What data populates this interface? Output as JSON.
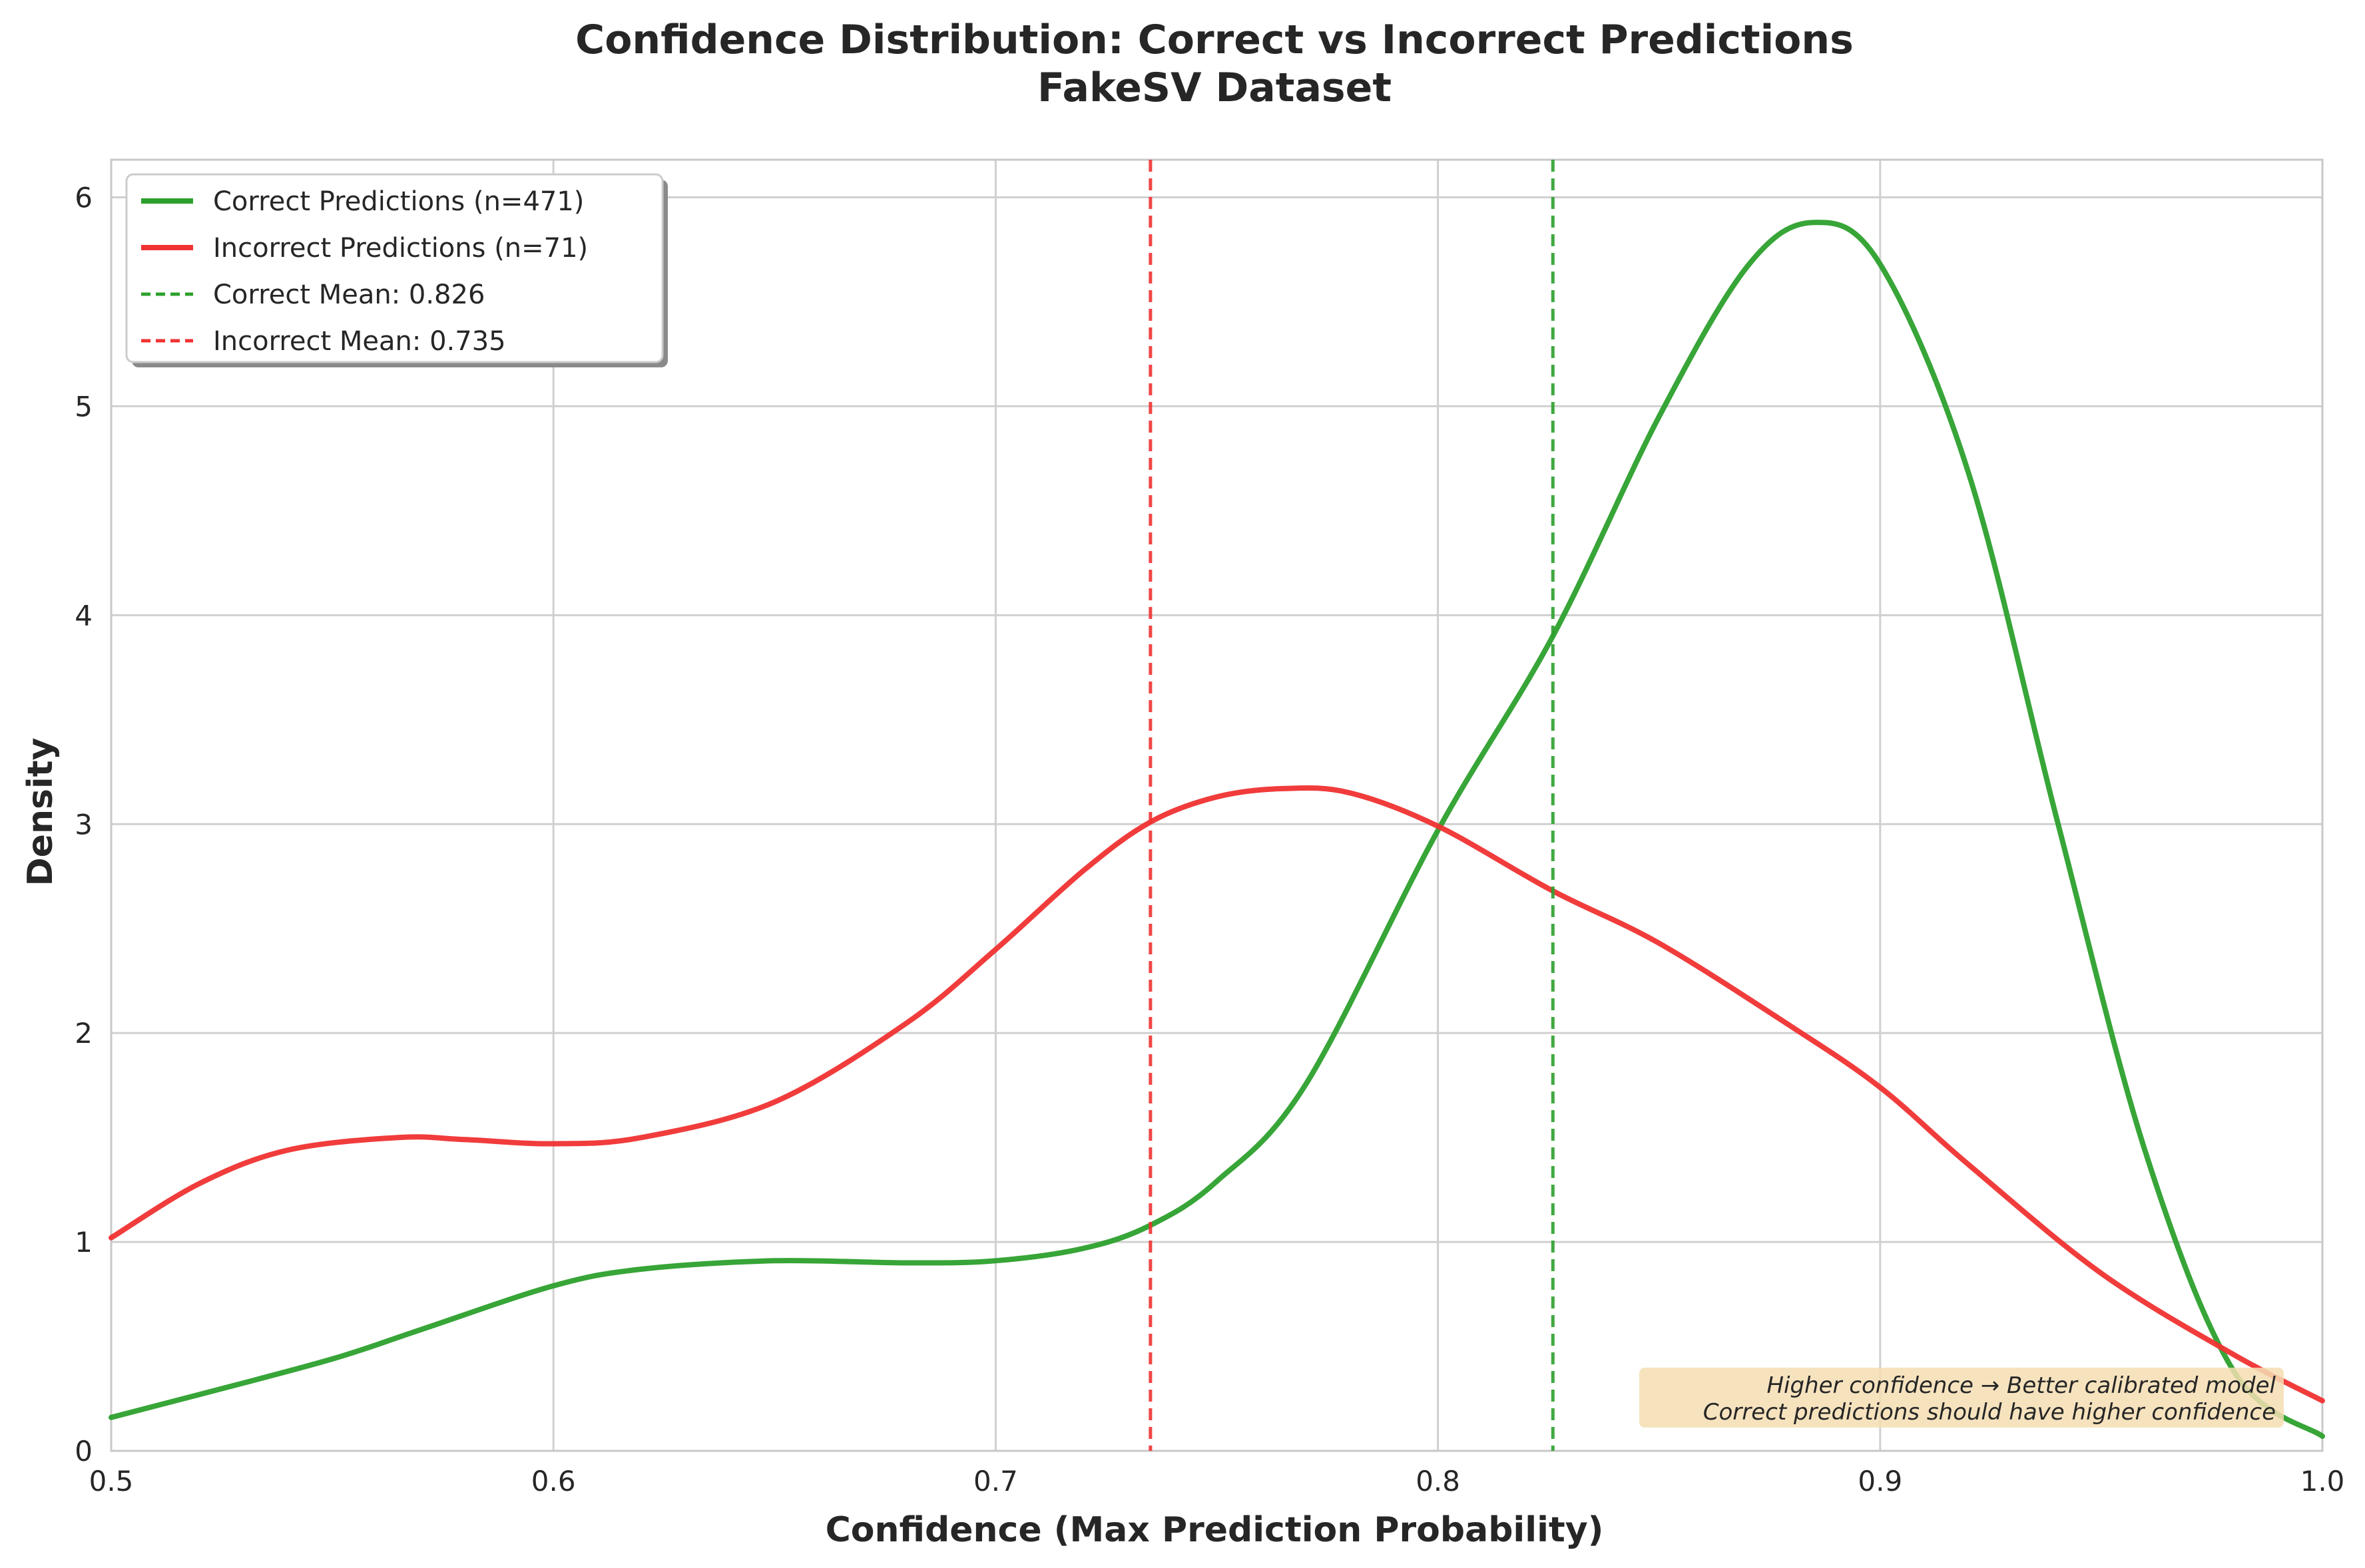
{
  "chart_data": {
    "type": "line",
    "title": "Confidence Distribution: Correct vs Incorrect Predictions",
    "subtitle": "FakeSV Dataset",
    "xlabel": "Confidence (Max Prediction Probability)",
    "ylabel": "Density",
    "xlim": [
      0.5,
      1.0
    ],
    "ylim": [
      0,
      6.18
    ],
    "xticks": [
      0.5,
      0.6,
      0.7,
      0.8,
      0.9,
      1.0
    ],
    "xtick_labels": [
      "0.5",
      "0.6",
      "0.7",
      "0.8",
      "0.9",
      "1.0"
    ],
    "yticks": [
      0,
      1,
      2,
      3,
      4,
      5,
      6
    ],
    "ytick_labels": [
      "0",
      "1",
      "2",
      "3",
      "4",
      "5",
      "6"
    ],
    "grid": true,
    "legend_position": "top-left",
    "series": [
      {
        "name": "Correct Predictions (n=471)",
        "color": "#2ca02c",
        "style": "solid",
        "x": [
          0.5,
          0.52,
          0.55,
          0.57,
          0.6,
          0.62,
          0.65,
          0.68,
          0.7,
          0.72,
          0.735,
          0.75,
          0.77,
          0.8,
          0.826,
          0.85,
          0.87,
          0.885,
          0.9,
          0.92,
          0.94,
          0.96,
          0.98,
          1.0
        ],
        "y": [
          0.16,
          0.27,
          0.44,
          0.58,
          0.79,
          0.87,
          0.91,
          0.9,
          0.91,
          0.97,
          1.08,
          1.29,
          1.75,
          2.97,
          3.9,
          4.95,
          5.67,
          5.88,
          5.68,
          4.68,
          3.02,
          1.43,
          0.38,
          0.07
        ]
      },
      {
        "name": "Incorrect Predictions (n=71)",
        "color": "#f03232",
        "style": "solid",
        "x": [
          0.5,
          0.52,
          0.54,
          0.565,
          0.58,
          0.6,
          0.62,
          0.65,
          0.68,
          0.7,
          0.72,
          0.735,
          0.75,
          0.765,
          0.78,
          0.8,
          0.826,
          0.85,
          0.88,
          0.9,
          0.92,
          0.95,
          0.98,
          1.0
        ],
        "y": [
          1.02,
          1.28,
          1.44,
          1.5,
          1.49,
          1.47,
          1.5,
          1.67,
          2.05,
          2.4,
          2.78,
          3.01,
          3.13,
          3.17,
          3.15,
          2.99,
          2.68,
          2.43,
          2.03,
          1.74,
          1.37,
          0.85,
          0.46,
          0.24
        ]
      }
    ],
    "reference_lines": [
      {
        "name": "Correct Mean: 0.826",
        "x": 0.826,
        "color": "#2ca02c",
        "style": "dashed"
      },
      {
        "name": "Incorrect Mean: 0.735",
        "x": 0.735,
        "color": "#f03232",
        "style": "dashed"
      }
    ],
    "annotation": {
      "line1": "Higher confidence → Better calibrated model",
      "line2": "Correct predictions should have higher confidence",
      "background": "#f5deb3"
    }
  }
}
